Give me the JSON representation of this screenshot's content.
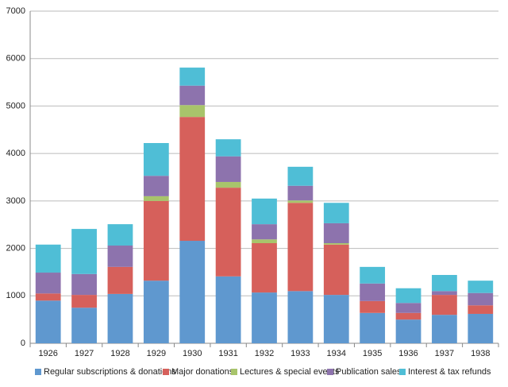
{
  "chart_data": {
    "type": "stacked_bar",
    "categories": [
      "1926",
      "1927",
      "1928",
      "1929",
      "1930",
      "1931",
      "1932",
      "1933",
      "1934",
      "1935",
      "1936",
      "1937",
      "1938"
    ],
    "series": [
      {
        "name": "Regular subscriptions & donations",
        "color": "#5f98cf",
        "values": [
          900,
          750,
          1040,
          1320,
          2160,
          1410,
          1070,
          1100,
          1020,
          640,
          500,
          600,
          620
        ]
      },
      {
        "name": "Major donations",
        "color": "#d6605b",
        "values": [
          150,
          270,
          570,
          1680,
          2610,
          1870,
          1040,
          1860,
          1060,
          250,
          140,
          420,
          180
        ]
      },
      {
        "name": "Lectures & special events",
        "color": "#a8c46b",
        "values": [
          0,
          0,
          0,
          100,
          250,
          120,
          80,
          50,
          30,
          0,
          0,
          0,
          0
        ]
      },
      {
        "name": "Publication sales",
        "color": "#8d73ad",
        "values": [
          440,
          440,
          450,
          430,
          410,
          540,
          320,
          310,
          420,
          370,
          210,
          80,
          260
        ]
      },
      {
        "name": "Interest & tax refunds",
        "color": "#4fbed6",
        "values": [
          590,
          950,
          450,
          690,
          380,
          360,
          540,
          400,
          430,
          350,
          310,
          340,
          260
        ]
      }
    ],
    "ylim": [
      0,
      7000
    ],
    "yticks": [
      0,
      1000,
      2000,
      3000,
      4000,
      5000,
      6000,
      7000
    ],
    "grid": true,
    "legend": "bottom"
  }
}
